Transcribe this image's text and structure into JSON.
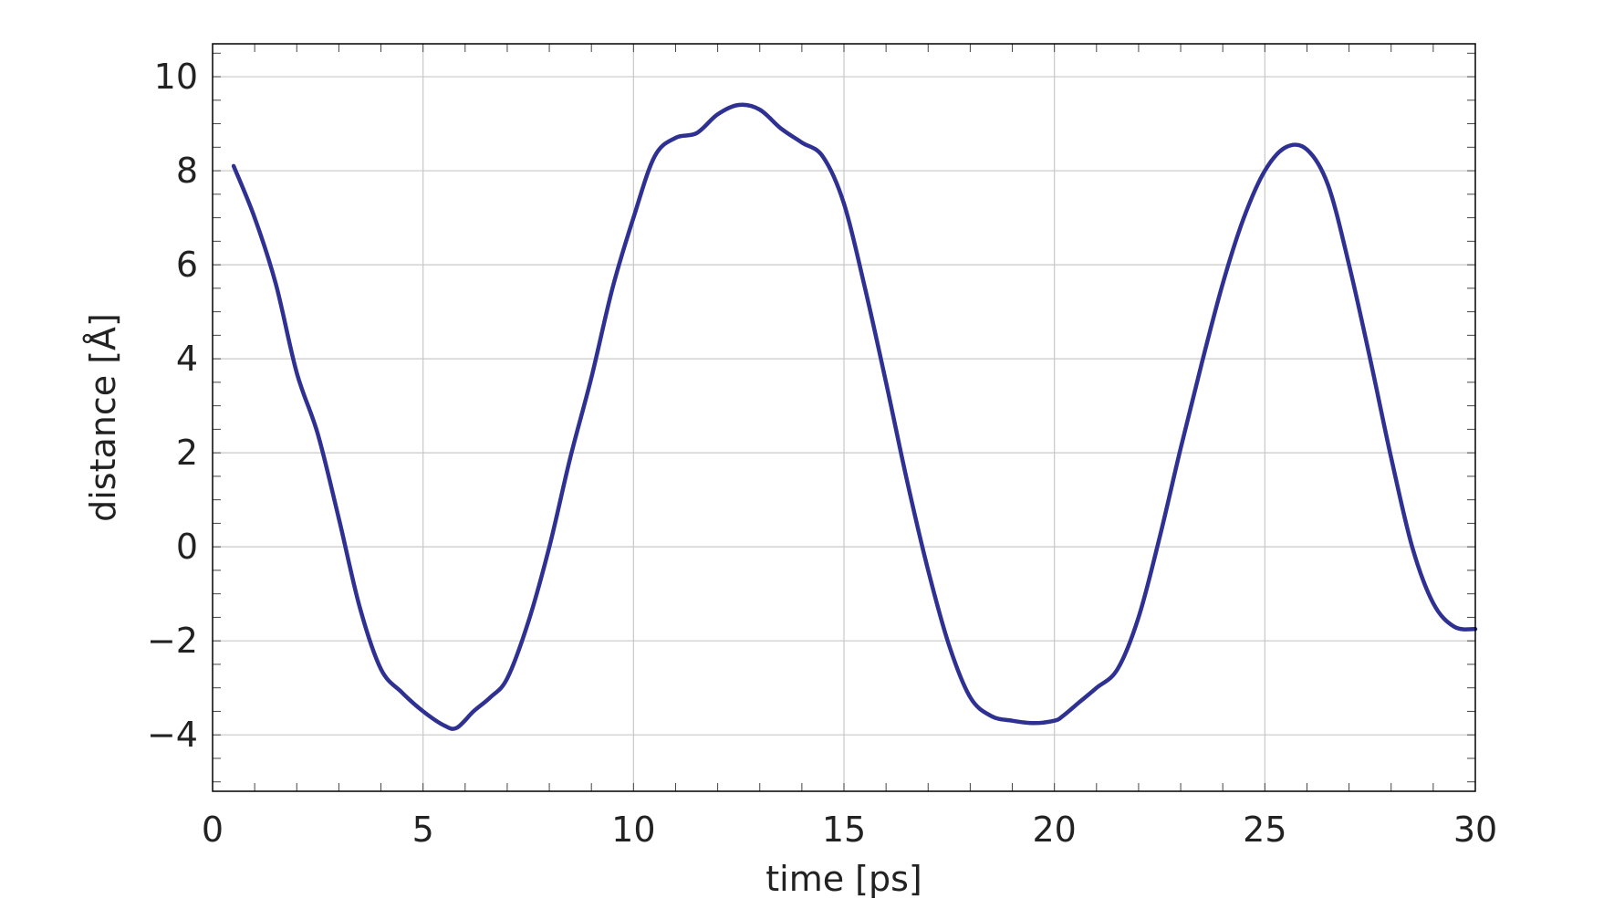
{
  "chart_data": {
    "type": "line",
    "title": "",
    "xlabel": "time [ps]",
    "ylabel": "distance [Å]",
    "xlim": [
      0,
      30
    ],
    "ylim": [
      -5.2,
      10.7
    ],
    "x_ticks": [
      0,
      5,
      10,
      15,
      20,
      25,
      30
    ],
    "x_tick_labels": [
      "0",
      "5",
      "10",
      "15",
      "20",
      "25",
      "30"
    ],
    "y_ticks": [
      -4,
      -2,
      0,
      2,
      4,
      6,
      8,
      10
    ],
    "y_tick_labels": [
      "−4",
      "−2",
      "0",
      "2",
      "4",
      "6",
      "8",
      "10"
    ],
    "grid": true,
    "legend": false,
    "colors": {
      "series": "#2e3192",
      "grid": "#c8c8c8",
      "axis": "#000000"
    },
    "series": [
      {
        "x": [
          0.5,
          1.0,
          1.5,
          2.0,
          2.5,
          3.0,
          3.5,
          4.0,
          4.5,
          5.0,
          5.5,
          5.8,
          6.2,
          6.6,
          7.0,
          7.5,
          8.0,
          8.5,
          9.0,
          9.5,
          10.0,
          10.5,
          11.0,
          11.5,
          12.0,
          12.5,
          13.0,
          13.5,
          14.0,
          14.5,
          15.0,
          15.5,
          16.0,
          16.5,
          17.0,
          17.5,
          18.0,
          18.5,
          19.0,
          19.5,
          20.0,
          20.2,
          20.6,
          21.0,
          21.5,
          22.0,
          22.5,
          23.0,
          23.5,
          24.0,
          24.5,
          25.0,
          25.5,
          26.0,
          26.5,
          27.0,
          27.5,
          28.0,
          28.5,
          29.0,
          29.5,
          30.0
        ],
        "y": [
          8.1,
          7.0,
          5.6,
          3.7,
          2.4,
          0.6,
          -1.3,
          -2.6,
          -3.1,
          -3.5,
          -3.8,
          -3.85,
          -3.5,
          -3.2,
          -2.8,
          -1.6,
          0.0,
          1.9,
          3.6,
          5.5,
          7.0,
          8.3,
          8.7,
          8.8,
          9.2,
          9.4,
          9.3,
          8.9,
          8.6,
          8.3,
          7.3,
          5.5,
          3.5,
          1.4,
          -0.5,
          -2.1,
          -3.2,
          -3.6,
          -3.7,
          -3.75,
          -3.7,
          -3.6,
          -3.3,
          -3.0,
          -2.6,
          -1.5,
          0.2,
          2.1,
          3.9,
          5.6,
          7.0,
          8.0,
          8.5,
          8.45,
          7.7,
          6.0,
          4.0,
          1.9,
          0.0,
          -1.2,
          -1.7,
          -1.75
        ]
      }
    ]
  }
}
